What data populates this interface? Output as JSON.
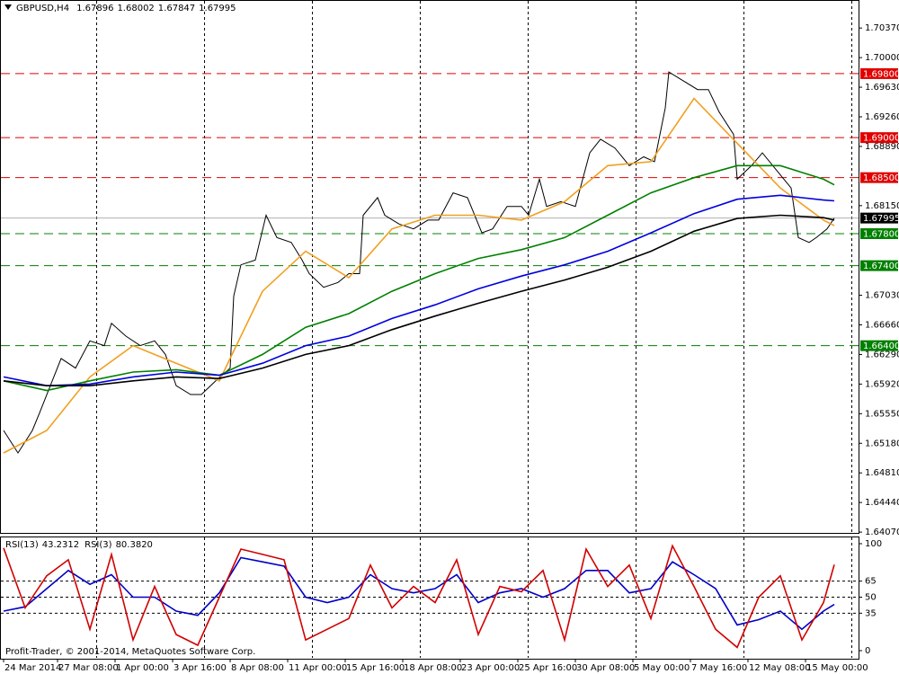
{
  "chart_data": [
    {
      "type": "line",
      "title": "GBPUSD,H4",
      "ohlc": [
        1.67896,
        1.68002,
        1.67847,
        1.67995
      ],
      "current_price": 1.67995,
      "xlim": [
        -1,
        237.75
      ],
      "xticks": [
        {
          "value": 0,
          "label": "24 Mar 2014"
        },
        {
          "value": 15,
          "label": "27 Mar 08:00"
        },
        {
          "value": 31,
          "label": "1 Apr 00:00"
        },
        {
          "value": 47,
          "label": "3 Apr 16:00"
        },
        {
          "value": 63,
          "label": "8 Apr 08:00"
        },
        {
          "value": 79,
          "label": "11 Apr 00:00"
        },
        {
          "value": 95,
          "label": "15 Apr 16:00"
        },
        {
          "value": 111,
          "label": "18 Apr 08:00"
        },
        {
          "value": 127,
          "label": "23 Apr 00:00"
        },
        {
          "value": 143,
          "label": "25 Apr 16:00"
        },
        {
          "value": 159,
          "label": "30 Apr 08:00"
        },
        {
          "value": 175,
          "label": "5 May 00:00"
        },
        {
          "value": 191,
          "label": "7 May 16:00"
        },
        {
          "value": 207,
          "label": "12 May 08:00"
        },
        {
          "value": 223,
          "label": "15 May 00:00"
        }
      ],
      "ylim": [
        1.6406,
        1.7072
      ],
      "yticks": [
        {
          "value": 1.7037,
          "label": "1.70370"
        },
        {
          "value": 1.7,
          "label": "1.70000"
        },
        {
          "value": 1.6963,
          "label": "1.69630"
        },
        {
          "value": 1.6926,
          "label": "1.69260"
        },
        {
          "value": 1.6889,
          "label": "1.68890"
        },
        {
          "value": 1.6815,
          "label": "1.68150"
        },
        {
          "value": 1.6703,
          "label": "1.67030"
        },
        {
          "value": 1.6666,
          "label": "1.66660"
        },
        {
          "value": 1.6629,
          "label": "1.66290"
        },
        {
          "value": 1.6592,
          "label": "1.65920"
        },
        {
          "value": 1.6555,
          "label": "1.65550"
        },
        {
          "value": 1.6518,
          "label": "1.65180"
        },
        {
          "value": 1.6481,
          "label": "1.64810"
        },
        {
          "value": 1.6444,
          "label": "1.64440"
        },
        {
          "value": 1.6407,
          "label": "1.64070"
        }
      ],
      "levels": [
        {
          "value": 1.698,
          "label": "1.69800",
          "color": "#e00000"
        },
        {
          "value": 1.69,
          "label": "1.69000",
          "color": "#e00000"
        },
        {
          "value": 1.685,
          "label": "1.68500",
          "color": "#e00000"
        },
        {
          "value": 1.678,
          "label": "1.67800",
          "color": "#008000"
        },
        {
          "value": 1.674,
          "label": "1.67400",
          "color": "#008000"
        },
        {
          "value": 1.664,
          "label": "1.66400",
          "color": "#008000"
        }
      ],
      "grid": true,
      "series": [
        {
          "color": "#000000",
          "x": [
            0,
            4,
            8,
            10,
            13,
            16,
            20,
            24,
            28,
            30,
            34,
            38,
            42,
            45,
            48,
            52,
            55,
            59,
            63,
            64,
            66,
            70,
            73,
            76,
            80,
            83,
            85,
            89,
            93,
            96,
            99,
            100,
            104,
            106,
            110,
            114,
            118,
            121,
            125,
            129,
            133,
            136,
            140,
            144,
            146,
            149,
            151,
            155,
            159,
            163,
            166,
            170,
            174,
            178,
            181,
            184,
            185,
            189,
            193,
            196,
            199,
            203,
            204,
            208,
            211,
            215,
            219,
            221,
            224,
            226,
            229,
            231
          ],
          "values": [
            1.6534,
            1.6506,
            1.6534,
            1.6556,
            1.659,
            1.6624,
            1.6612,
            1.6646,
            1.664,
            1.6668,
            1.6652,
            1.664,
            1.6646,
            1.6629,
            1.659,
            1.6579,
            1.6579,
            1.6596,
            1.6612,
            1.6702,
            1.6741,
            1.6747,
            1.6803,
            1.6775,
            1.6769,
            1.6747,
            1.673,
            1.6713,
            1.6719,
            1.673,
            1.673,
            1.6803,
            1.6825,
            1.6803,
            1.6792,
            1.6786,
            1.6797,
            1.6797,
            1.6831,
            1.6825,
            1.6781,
            1.6786,
            1.6814,
            1.6814,
            1.6803,
            1.6848,
            1.6814,
            1.682,
            1.6814,
            1.6881,
            1.6898,
            1.6887,
            1.6865,
            1.6876,
            1.687,
            1.6937,
            1.6982,
            1.6971,
            1.696,
            1.696,
            1.6932,
            1.6904,
            1.6848,
            1.6865,
            1.6881,
            1.6859,
            1.6837,
            1.6775,
            1.6769,
            1.6775,
            1.6786,
            1.67995
          ]
        },
        {
          "color": "#f0a020",
          "x": [
            0,
            12,
            24,
            36,
            48,
            60,
            72,
            84,
            96,
            108,
            120,
            132,
            144,
            156,
            168,
            180,
            192,
            204,
            216,
            228,
            231
          ],
          "values": [
            1.6506,
            1.6534,
            1.6601,
            1.664,
            1.6618,
            1.6596,
            1.6708,
            1.6758,
            1.6725,
            1.6786,
            1.6803,
            1.6803,
            1.6797,
            1.682,
            1.6865,
            1.687,
            1.6949,
            1.6893,
            1.6837,
            1.6797,
            1.679
          ]
        },
        {
          "color": "#008000",
          "x": [
            0,
            12,
            24,
            36,
            48,
            60,
            72,
            84,
            96,
            108,
            120,
            132,
            144,
            156,
            168,
            180,
            192,
            204,
            216,
            228,
            231
          ],
          "values": [
            1.6596,
            1.6584,
            1.6596,
            1.6607,
            1.661,
            1.6603,
            1.6629,
            1.6663,
            1.668,
            1.6708,
            1.673,
            1.6749,
            1.676,
            1.6775,
            1.6803,
            1.6831,
            1.685,
            1.6865,
            1.6865,
            1.6848,
            1.6841
          ]
        },
        {
          "color": "#0000e0",
          "x": [
            0,
            12,
            24,
            36,
            48,
            60,
            72,
            84,
            96,
            108,
            120,
            132,
            144,
            156,
            168,
            180,
            192,
            204,
            216,
            228,
            231
          ],
          "values": [
            1.6601,
            1.659,
            1.6592,
            1.6601,
            1.6607,
            1.6603,
            1.6618,
            1.664,
            1.6652,
            1.6674,
            1.6691,
            1.6711,
            1.6727,
            1.6741,
            1.6758,
            1.6781,
            1.6805,
            1.6823,
            1.6828,
            1.6822,
            1.6821
          ]
        },
        {
          "color": "#000000",
          "x": [
            0,
            12,
            24,
            36,
            48,
            60,
            72,
            84,
            96,
            108,
            120,
            132,
            144,
            156,
            168,
            180,
            192,
            204,
            216,
            228,
            231
          ],
          "values": [
            1.6596,
            1.659,
            1.659,
            1.6596,
            1.6601,
            1.6599,
            1.6612,
            1.6629,
            1.664,
            1.666,
            1.6677,
            1.6693,
            1.6708,
            1.6722,
            1.6738,
            1.6758,
            1.6783,
            1.6799,
            1.6803,
            1.68,
            1.6797
          ]
        }
      ]
    },
    {
      "type": "line",
      "xlim": [
        -1,
        237.75
      ],
      "ylim": [
        0,
        100
      ],
      "yticks": [
        100,
        65,
        50,
        35,
        0
      ],
      "levels": [
        65,
        50,
        35
      ],
      "footer": "Profit-Trader, © 2001-2014, MetaQuotes Software Corp.",
      "series": [
        {
          "name": "RSI(13)",
          "color": "#0000c8",
          "current": 43.2312,
          "x": [
            0,
            6,
            12,
            18,
            24,
            30,
            36,
            42,
            48,
            54,
            60,
            66,
            72,
            78,
            84,
            90,
            96,
            102,
            108,
            114,
            120,
            126,
            132,
            138,
            144,
            150,
            156,
            162,
            168,
            174,
            180,
            186,
            192,
            198,
            204,
            210,
            216,
            222,
            228,
            231
          ],
          "values": [
            37,
            41,
            58,
            75,
            62,
            71,
            50,
            50,
            37,
            33,
            54,
            87,
            83,
            79,
            50,
            45,
            50,
            71,
            58,
            54,
            58,
            71,
            45,
            54,
            58,
            50,
            58,
            75,
            75,
            54,
            58,
            83,
            71,
            58,
            24,
            29,
            37,
            20,
            37,
            43.2312
          ]
        },
        {
          "name": "RSI(3)",
          "color": "#d00000",
          "current": {
            "value": 80.382,
            "label": "80.3820"
          },
          "x": [
            0,
            6,
            12,
            18,
            24,
            30,
            36,
            42,
            48,
            54,
            60,
            66,
            72,
            78,
            84,
            90,
            96,
            102,
            108,
            114,
            120,
            126,
            132,
            138,
            144,
            150,
            156,
            162,
            168,
            174,
            180,
            186,
            192,
            198,
            204,
            210,
            216,
            222,
            228,
            231
          ],
          "values": [
            96,
            40,
            70,
            85,
            20,
            90,
            10,
            60,
            15,
            5,
            50,
            95,
            90,
            85,
            10,
            20,
            30,
            80,
            40,
            60,
            45,
            85,
            15,
            60,
            55,
            75,
            10,
            95,
            60,
            80,
            30,
            98,
            60,
            20,
            3,
            50,
            70,
            10,
            45,
            80.382
          ]
        }
      ]
    }
  ]
}
